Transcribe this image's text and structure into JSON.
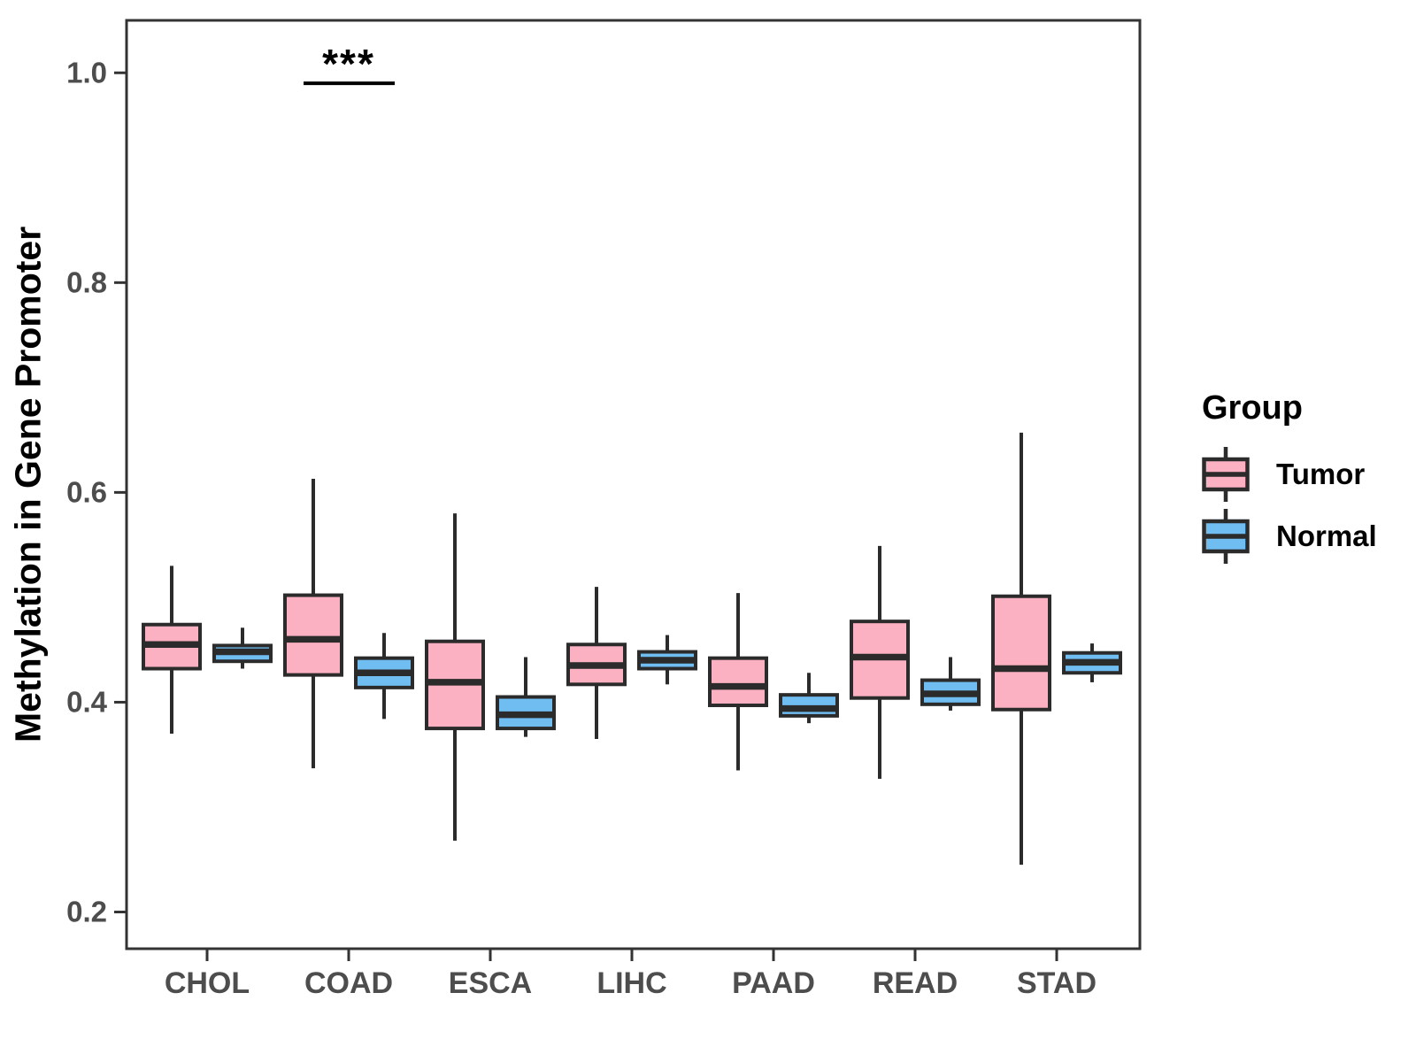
{
  "styles": {
    "background": "#ffffff",
    "box_border": "#2b2b2b",
    "axis_color": "#333333",
    "tick_label_color": "#4d4d4d",
    "tumor_color": "#FBB1C2",
    "normal_color": "#70BDF2"
  },
  "chart_data": {
    "type": "boxplot",
    "title": "",
    "xlabel": "",
    "ylabel": "Methylation in Gene Promoter",
    "categories": [
      "CHOL",
      "COAD",
      "ESCA",
      "LIHC",
      "PAAD",
      "READ",
      "STAD"
    ],
    "y_ticks": [
      0.2,
      0.4,
      0.6,
      0.8,
      1.0
    ],
    "ylim": [
      0.165,
      1.05
    ],
    "grid": false,
    "legend_position": "right",
    "series": [
      {
        "name": "Tumor",
        "color": "#FBB1C2",
        "boxes": [
          {
            "category": "CHOL",
            "whisker_low": 0.37,
            "q1": 0.432,
            "median": 0.455,
            "q3": 0.474,
            "whisker_high": 0.53
          },
          {
            "category": "COAD",
            "whisker_low": 0.337,
            "q1": 0.426,
            "median": 0.46,
            "q3": 0.502,
            "whisker_high": 0.613
          },
          {
            "category": "ESCA",
            "whisker_low": 0.268,
            "q1": 0.375,
            "median": 0.419,
            "q3": 0.458,
            "whisker_high": 0.58
          },
          {
            "category": "LIHC",
            "whisker_low": 0.365,
            "q1": 0.417,
            "median": 0.435,
            "q3": 0.455,
            "whisker_high": 0.51
          },
          {
            "category": "PAAD",
            "whisker_low": 0.335,
            "q1": 0.397,
            "median": 0.415,
            "q3": 0.442,
            "whisker_high": 0.504
          },
          {
            "category": "READ",
            "whisker_low": 0.327,
            "q1": 0.404,
            "median": 0.443,
            "q3": 0.477,
            "whisker_high": 0.549
          },
          {
            "category": "STAD",
            "whisker_low": 0.245,
            "q1": 0.393,
            "median": 0.432,
            "q3": 0.501,
            "whisker_high": 0.657
          }
        ]
      },
      {
        "name": "Normal",
        "color": "#70BDF2",
        "boxes": [
          {
            "category": "CHOL",
            "whisker_low": 0.432,
            "q1": 0.439,
            "median": 0.448,
            "q3": 0.454,
            "whisker_high": 0.471
          },
          {
            "category": "COAD",
            "whisker_low": 0.384,
            "q1": 0.414,
            "median": 0.428,
            "q3": 0.442,
            "whisker_high": 0.466
          },
          {
            "category": "ESCA",
            "whisker_low": 0.367,
            "q1": 0.375,
            "median": 0.388,
            "q3": 0.405,
            "whisker_high": 0.443
          },
          {
            "category": "LIHC",
            "whisker_low": 0.417,
            "q1": 0.432,
            "median": 0.44,
            "q3": 0.448,
            "whisker_high": 0.464
          },
          {
            "category": "PAAD",
            "whisker_low": 0.38,
            "q1": 0.387,
            "median": 0.394,
            "q3": 0.407,
            "whisker_high": 0.428
          },
          {
            "category": "READ",
            "whisker_low": 0.392,
            "q1": 0.398,
            "median": 0.408,
            "q3": 0.421,
            "whisker_high": 0.443
          },
          {
            "category": "STAD",
            "whisker_low": 0.419,
            "q1": 0.428,
            "median": 0.438,
            "q3": 0.447,
            "whisker_high": 0.456
          }
        ]
      }
    ],
    "significance": {
      "category": "COAD",
      "label": "***",
      "bar_y": 0.99
    },
    "legend": {
      "title": "Group",
      "entries": [
        {
          "label": "Tumor",
          "color": "#FBB1C2"
        },
        {
          "label": "Normal",
          "color": "#70BDF2"
        }
      ]
    }
  }
}
